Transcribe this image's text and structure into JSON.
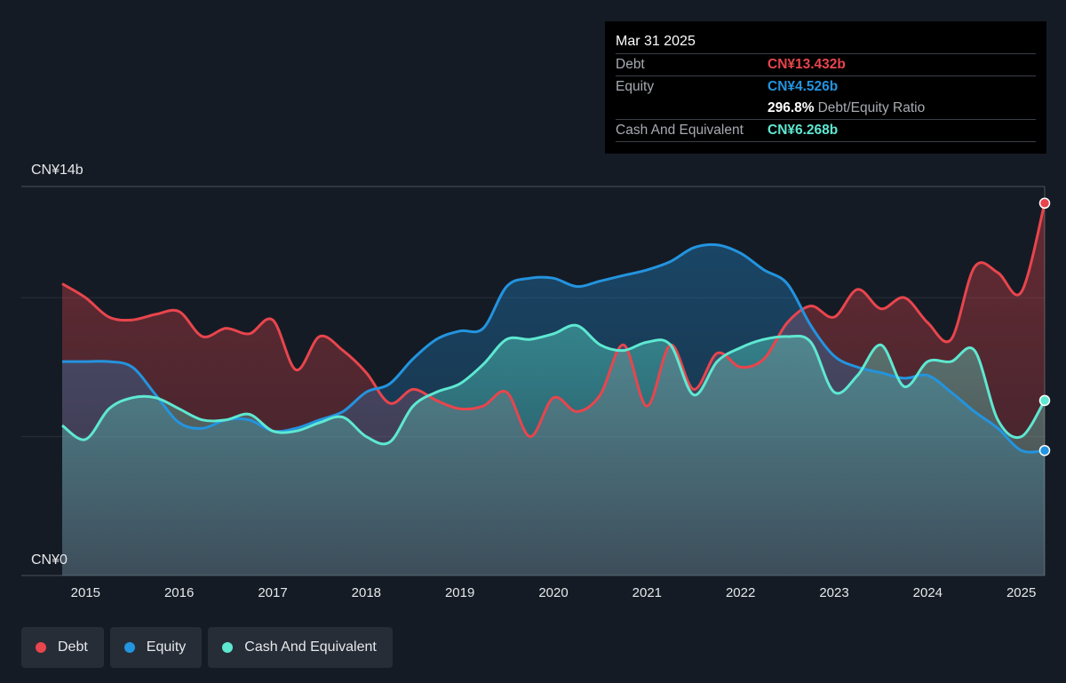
{
  "colors": {
    "background": "#151b24",
    "debt": "#e8454d",
    "equity": "#2394df",
    "cash": "#5ee8d1"
  },
  "tooltip": {
    "date": "Mar 31 2025",
    "debt_label": "Debt",
    "debt_value": "CN¥13.432b",
    "equity_label": "Equity",
    "equity_value": "CN¥4.526b",
    "ratio_value": "296.8%",
    "ratio_label": "Debt/Equity Ratio",
    "cash_label": "Cash And Equivalent",
    "cash_value": "CN¥6.268b"
  },
  "legend": {
    "debt": "Debt",
    "equity": "Equity",
    "cash": "Cash And Equivalent"
  },
  "chart_data": {
    "type": "area",
    "ylabel_top": "CN¥14b",
    "ylabel_bottom": "CN¥0",
    "ylim": [
      0,
      14
    ],
    "xlim": [
      2014.75,
      2025.25
    ],
    "x_ticks": [
      "2015",
      "2016",
      "2017",
      "2018",
      "2019",
      "2020",
      "2021",
      "2022",
      "2023",
      "2024",
      "2025"
    ],
    "grid": "horizontal",
    "series": [
      {
        "name": "Debt",
        "x": [
          2014.75,
          2015.0,
          2015.25,
          2015.5,
          2015.75,
          2016.0,
          2016.25,
          2016.5,
          2016.75,
          2017.0,
          2017.25,
          2017.5,
          2017.75,
          2018.0,
          2018.25,
          2018.5,
          2018.75,
          2019.0,
          2019.25,
          2019.5,
          2019.75,
          2020.0,
          2020.25,
          2020.5,
          2020.75,
          2021.0,
          2021.25,
          2021.5,
          2021.75,
          2022.0,
          2022.25,
          2022.5,
          2022.75,
          2023.0,
          2023.25,
          2023.5,
          2023.75,
          2024.0,
          2024.25,
          2024.5,
          2024.75,
          2025.0,
          2025.25
        ],
        "values": [
          10.5,
          10.0,
          9.3,
          9.2,
          9.4,
          9.5,
          8.6,
          8.9,
          8.7,
          9.2,
          7.4,
          8.6,
          8.1,
          7.3,
          6.2,
          6.7,
          6.3,
          6.0,
          6.1,
          6.6,
          5.0,
          6.4,
          5.9,
          6.5,
          8.3,
          6.1,
          8.3,
          6.7,
          8.0,
          7.5,
          7.8,
          9.1,
          9.7,
          9.3,
          10.3,
          9.6,
          10.0,
          9.1,
          8.5,
          11.1,
          10.9,
          10.2,
          13.4
        ]
      },
      {
        "name": "Equity",
        "x": [
          2014.75,
          2015.0,
          2015.25,
          2015.5,
          2015.75,
          2016.0,
          2016.25,
          2016.5,
          2016.75,
          2017.0,
          2017.25,
          2017.5,
          2017.75,
          2018.0,
          2018.25,
          2018.5,
          2018.75,
          2019.0,
          2019.25,
          2019.5,
          2019.75,
          2020.0,
          2020.25,
          2020.5,
          2020.75,
          2021.0,
          2021.25,
          2021.5,
          2021.75,
          2022.0,
          2022.25,
          2022.5,
          2022.75,
          2023.0,
          2023.25,
          2023.5,
          2023.75,
          2024.0,
          2024.25,
          2024.5,
          2024.75,
          2025.0,
          2025.25
        ],
        "values": [
          7.7,
          7.7,
          7.7,
          7.5,
          6.5,
          5.5,
          5.3,
          5.6,
          5.6,
          5.2,
          5.3,
          5.6,
          5.9,
          6.6,
          6.9,
          7.8,
          8.5,
          8.8,
          8.9,
          10.4,
          10.7,
          10.7,
          10.4,
          10.6,
          10.8,
          11.0,
          11.3,
          11.8,
          11.9,
          11.6,
          11.0,
          10.5,
          9.0,
          7.9,
          7.5,
          7.3,
          7.1,
          7.2,
          6.6,
          5.9,
          5.3,
          4.5,
          4.5
        ]
      },
      {
        "name": "Cash And Equivalent",
        "x": [
          2014.75,
          2015.0,
          2015.25,
          2015.5,
          2015.75,
          2016.0,
          2016.25,
          2016.5,
          2016.75,
          2017.0,
          2017.25,
          2017.5,
          2017.75,
          2018.0,
          2018.25,
          2018.5,
          2018.75,
          2019.0,
          2019.25,
          2019.5,
          2019.75,
          2020.0,
          2020.25,
          2020.5,
          2020.75,
          2021.0,
          2021.25,
          2021.5,
          2021.75,
          2022.0,
          2022.25,
          2022.5,
          2022.75,
          2023.0,
          2023.25,
          2023.5,
          2023.75,
          2024.0,
          2024.25,
          2024.5,
          2024.75,
          2025.0,
          2025.25
        ],
        "values": [
          5.4,
          4.9,
          6.0,
          6.4,
          6.4,
          6.0,
          5.6,
          5.6,
          5.8,
          5.2,
          5.2,
          5.5,
          5.7,
          5.0,
          4.8,
          6.1,
          6.6,
          6.9,
          7.6,
          8.5,
          8.5,
          8.7,
          9.0,
          8.3,
          8.1,
          8.4,
          8.3,
          6.5,
          7.7,
          8.2,
          8.5,
          8.6,
          8.4,
          6.6,
          7.2,
          8.3,
          6.8,
          7.7,
          7.7,
          8.1,
          5.6,
          5.0,
          6.3
        ]
      }
    ]
  }
}
